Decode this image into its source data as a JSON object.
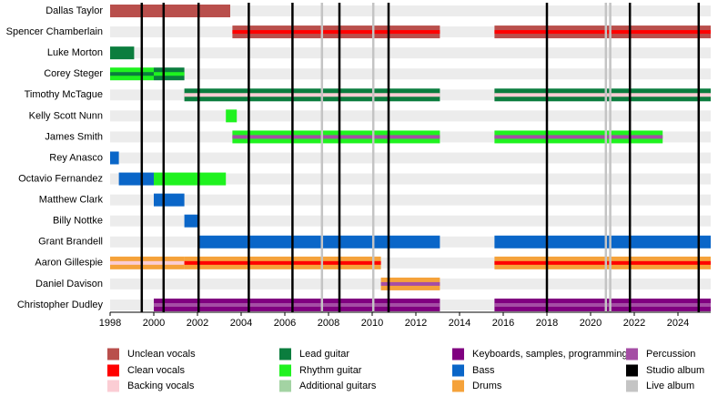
{
  "chart_data": {
    "type": "timeline",
    "xlim": [
      1998,
      2025.5
    ],
    "xticks": [
      1998,
      2000,
      2002,
      2004,
      2006,
      2008,
      2010,
      2012,
      2014,
      2016,
      2018,
      2020,
      2022,
      2024
    ],
    "roles": [
      {
        "name": "Unclean vocals",
        "color": "#b94f4c"
      },
      {
        "name": "Clean vocals",
        "color": "#ff0000"
      },
      {
        "name": "Backing vocals",
        "color": "#fbcdd4"
      },
      {
        "name": "Lead guitar",
        "color": "#0b7d3e"
      },
      {
        "name": "Rhythm guitar",
        "color": "#1ff21f"
      },
      {
        "name": "Additional guitars",
        "color": "#a3d3a3"
      },
      {
        "name": "Keyboards, samples, programming",
        "color": "#800080"
      },
      {
        "name": "Bass",
        "color": "#0a66c8"
      },
      {
        "name": "Drums",
        "color": "#f5a23a"
      },
      {
        "name": "Percussion",
        "color": "#a54ea5"
      },
      {
        "name": "Studio album",
        "color": "#000000"
      },
      {
        "name": "Live album",
        "color": "#c4c4c4"
      }
    ],
    "studio_albums": [
      1999.45,
      2000.45,
      2002.05,
      2004.35,
      2006.35,
      2008.5,
      2010.75,
      2018.0,
      2021.8,
      2024.95
    ],
    "live_albums": [
      2007.7,
      2010.05,
      2020.7,
      2020.9
    ],
    "members": [
      {
        "name": "Dallas Taylor",
        "segments": [
          {
            "start": 1998,
            "end": 2003.5,
            "role": "Unclean vocals"
          }
        ]
      },
      {
        "name": "Spencer Chamberlain",
        "segments": [
          {
            "start": 2003.6,
            "end": 2013.1,
            "role": "Unclean vocals",
            "stripe": "Clean vocals"
          },
          {
            "start": 2015.6,
            "end": 2025.5,
            "role": "Unclean vocals",
            "stripe": "Clean vocals"
          }
        ]
      },
      {
        "name": "Luke Morton",
        "segments": [
          {
            "start": 1998,
            "end": 1999.1,
            "role": "Lead guitar"
          }
        ]
      },
      {
        "name": "Corey Steger",
        "segments": [
          {
            "start": 1998,
            "end": 2000,
            "role": "Rhythm guitar",
            "stripe": "Lead guitar"
          },
          {
            "start": 2000,
            "end": 2001.4,
            "role": "Lead guitar",
            "stripe": "Rhythm guitar"
          }
        ]
      },
      {
        "name": "Timothy McTague",
        "segments": [
          {
            "start": 2001.4,
            "end": 2013.1,
            "role": "Lead guitar",
            "stripe": "Backing vocals"
          },
          {
            "start": 2015.6,
            "end": 2025.5,
            "role": "Lead guitar",
            "stripe": "Backing vocals"
          }
        ]
      },
      {
        "name": "Kelly Scott Nunn",
        "segments": [
          {
            "start": 2003.3,
            "end": 2003.8,
            "role": "Rhythm guitar"
          }
        ]
      },
      {
        "name": "James Smith",
        "segments": [
          {
            "start": 2003.6,
            "end": 2013.1,
            "role": "Rhythm guitar",
            "stripe": "Percussion"
          },
          {
            "start": 2015.6,
            "end": 2023.3,
            "role": "Rhythm guitar",
            "stripe": "Percussion"
          }
        ]
      },
      {
        "name": "Rey Anasco",
        "segments": [
          {
            "start": 1998,
            "end": 1998.4,
            "role": "Bass"
          }
        ]
      },
      {
        "name": "Octavio Fernandez",
        "segments": [
          {
            "start": 1998.4,
            "end": 2000,
            "role": "Bass"
          },
          {
            "start": 2000,
            "end": 2003.3,
            "role": "Rhythm guitar"
          }
        ]
      },
      {
        "name": "Matthew Clark",
        "segments": [
          {
            "start": 2000,
            "end": 2001.4,
            "role": "Bass"
          }
        ]
      },
      {
        "name": "Billy Nottke",
        "segments": [
          {
            "start": 2001.4,
            "end": 2002,
            "role": "Bass"
          }
        ]
      },
      {
        "name": "Grant Brandell",
        "segments": [
          {
            "start": 2002,
            "end": 2013.1,
            "role": "Bass"
          },
          {
            "start": 2015.6,
            "end": 2025.5,
            "role": "Bass"
          }
        ]
      },
      {
        "name": "Aaron Gillespie",
        "segments": [
          {
            "start": 1998,
            "end": 2001.4,
            "role": "Drums",
            "stripe": "Backing vocals"
          },
          {
            "start": 2001.4,
            "end": 2010.4,
            "role": "Drums",
            "stripe": "Clean vocals"
          },
          {
            "start": 2015.6,
            "end": 2025.5,
            "role": "Drums",
            "stripe": "Clean vocals"
          }
        ]
      },
      {
        "name": "Daniel Davison",
        "segments": [
          {
            "start": 2010.4,
            "end": 2013.1,
            "role": "Drums",
            "stripe": "Percussion"
          }
        ]
      },
      {
        "name": "Christopher Dudley",
        "segments": [
          {
            "start": 2000,
            "end": 2013.1,
            "role": "Keyboards, samples, programming",
            "stripe": "Percussion"
          },
          {
            "start": 2015.6,
            "end": 2025.5,
            "role": "Keyboards, samples, programming",
            "stripe": "Percussion"
          }
        ]
      }
    ]
  }
}
